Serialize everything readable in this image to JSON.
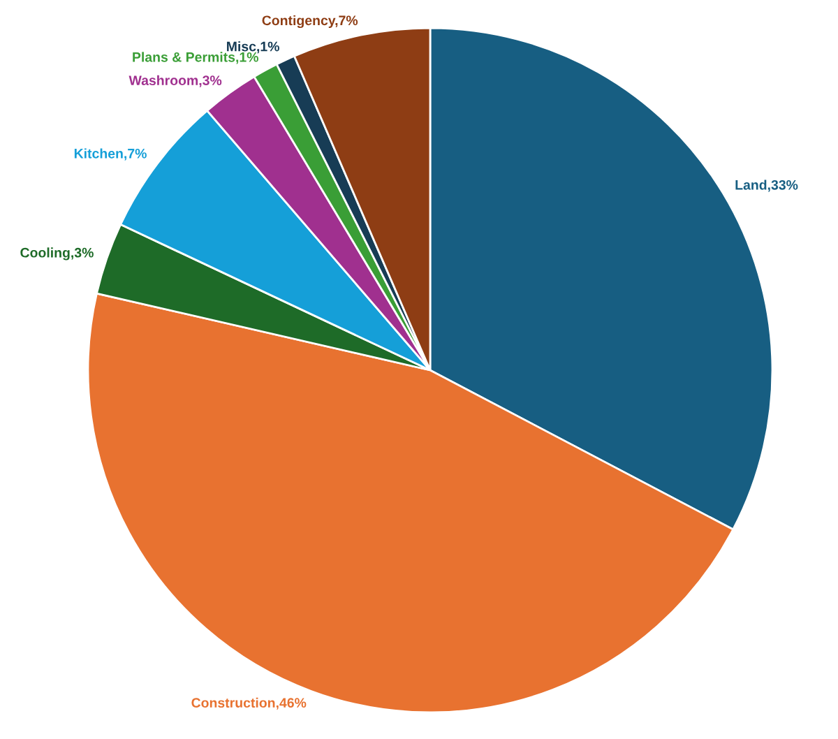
{
  "chart_data": {
    "type": "pie",
    "categories": [
      "Land",
      "Construction",
      "Cooling",
      "Kitchen",
      "Washroom",
      "Plans & Permits",
      "Misc",
      "Contigency"
    ],
    "values": [
      32.7,
      45.9,
      3.4,
      6.7,
      2.7,
      1.2,
      0.9,
      6.5
    ],
    "value_labels": [
      "33%",
      "46%",
      "3%",
      "7%",
      "3%",
      "1%",
      "1%",
      "7%"
    ],
    "colors": [
      "#175e82",
      "#e87230",
      "#1e6b28",
      "#159fd8",
      "#a0308f",
      "#3a9e36",
      "#173c55",
      "#8e3d14"
    ],
    "legend": false
  }
}
